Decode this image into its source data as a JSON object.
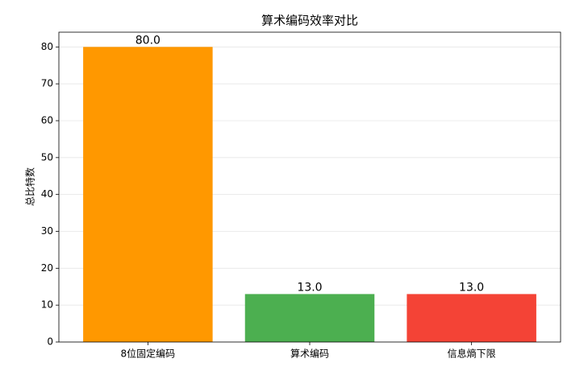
{
  "chart_data": {
    "type": "bar",
    "title": "算术编码效率对比",
    "ylabel": "总比特数",
    "categories": [
      "8位固定编码",
      "算术编码",
      "信息熵下限"
    ],
    "values": [
      80,
      13,
      13
    ],
    "value_labels": [
      "80.0",
      "13.0",
      "13.0"
    ],
    "colors": [
      "#ff9800",
      "#4caf50",
      "#f44336"
    ],
    "ylim": [
      0,
      84
    ],
    "yticks": [
      0,
      10,
      20,
      30,
      40,
      50,
      60,
      70,
      80
    ],
    "grid": true
  }
}
